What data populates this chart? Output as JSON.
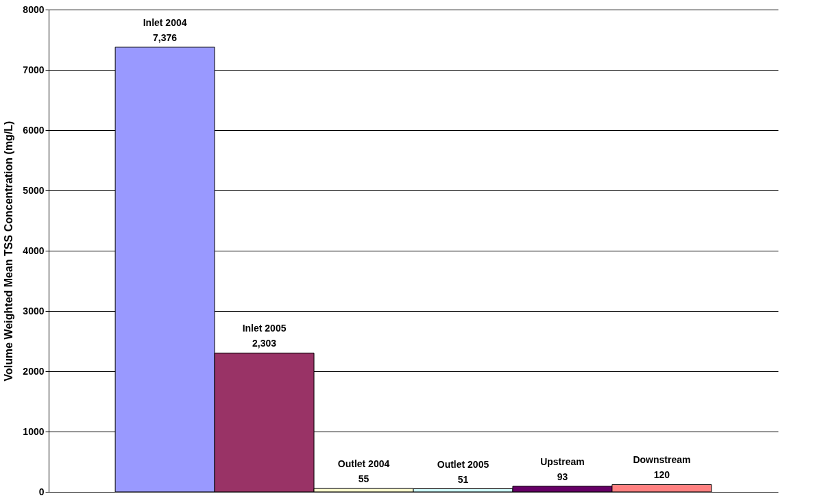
{
  "chart_data": {
    "type": "bar",
    "ylabel": "Volume Weighted Mean TSS Concentration (mg/L)",
    "categories": [
      "Inlet 2004",
      "Inlet 2005",
      "Outlet 2004",
      "Outlet 2005",
      "Upstream",
      "Downstream"
    ],
    "values": [
      7376,
      2303,
      55,
      51,
      93,
      120
    ],
    "value_labels": [
      "7,376",
      "2,303",
      "55",
      "51",
      "93",
      "120"
    ],
    "colors": [
      "#9999ff",
      "#993366",
      "#ffffcc",
      "#ccffff",
      "#660066",
      "#ff8080"
    ],
    "ylim": [
      0,
      8000
    ],
    "yticks": [
      0,
      1000,
      2000,
      3000,
      4000,
      5000,
      6000,
      7000,
      8000
    ],
    "grid": "y",
    "tick_labels": "y"
  }
}
